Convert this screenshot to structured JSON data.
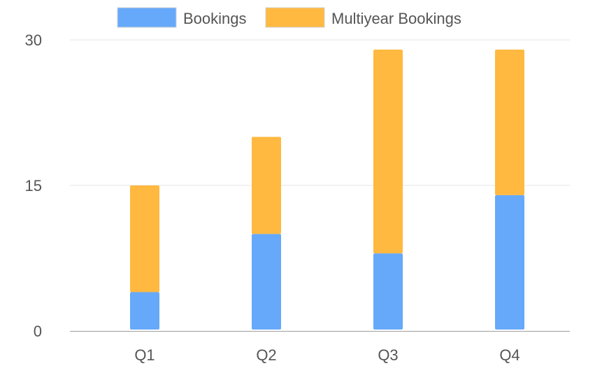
{
  "chart_data": {
    "type": "bar",
    "stacked": true,
    "categories": [
      "Q1",
      "Q2",
      "Q3",
      "Q4"
    ],
    "series": [
      {
        "name": "Bookings",
        "color": "#66a9fa",
        "values": [
          4,
          10,
          8,
          14
        ]
      },
      {
        "name": "Multiyear Bookings",
        "color": "#ffb940",
        "values": [
          11,
          10,
          21,
          15
        ]
      }
    ],
    "ylim": [
      0,
      30
    ],
    "yticks": [
      "0",
      "15",
      "30"
    ],
    "grid": true,
    "legend_position": "top"
  }
}
